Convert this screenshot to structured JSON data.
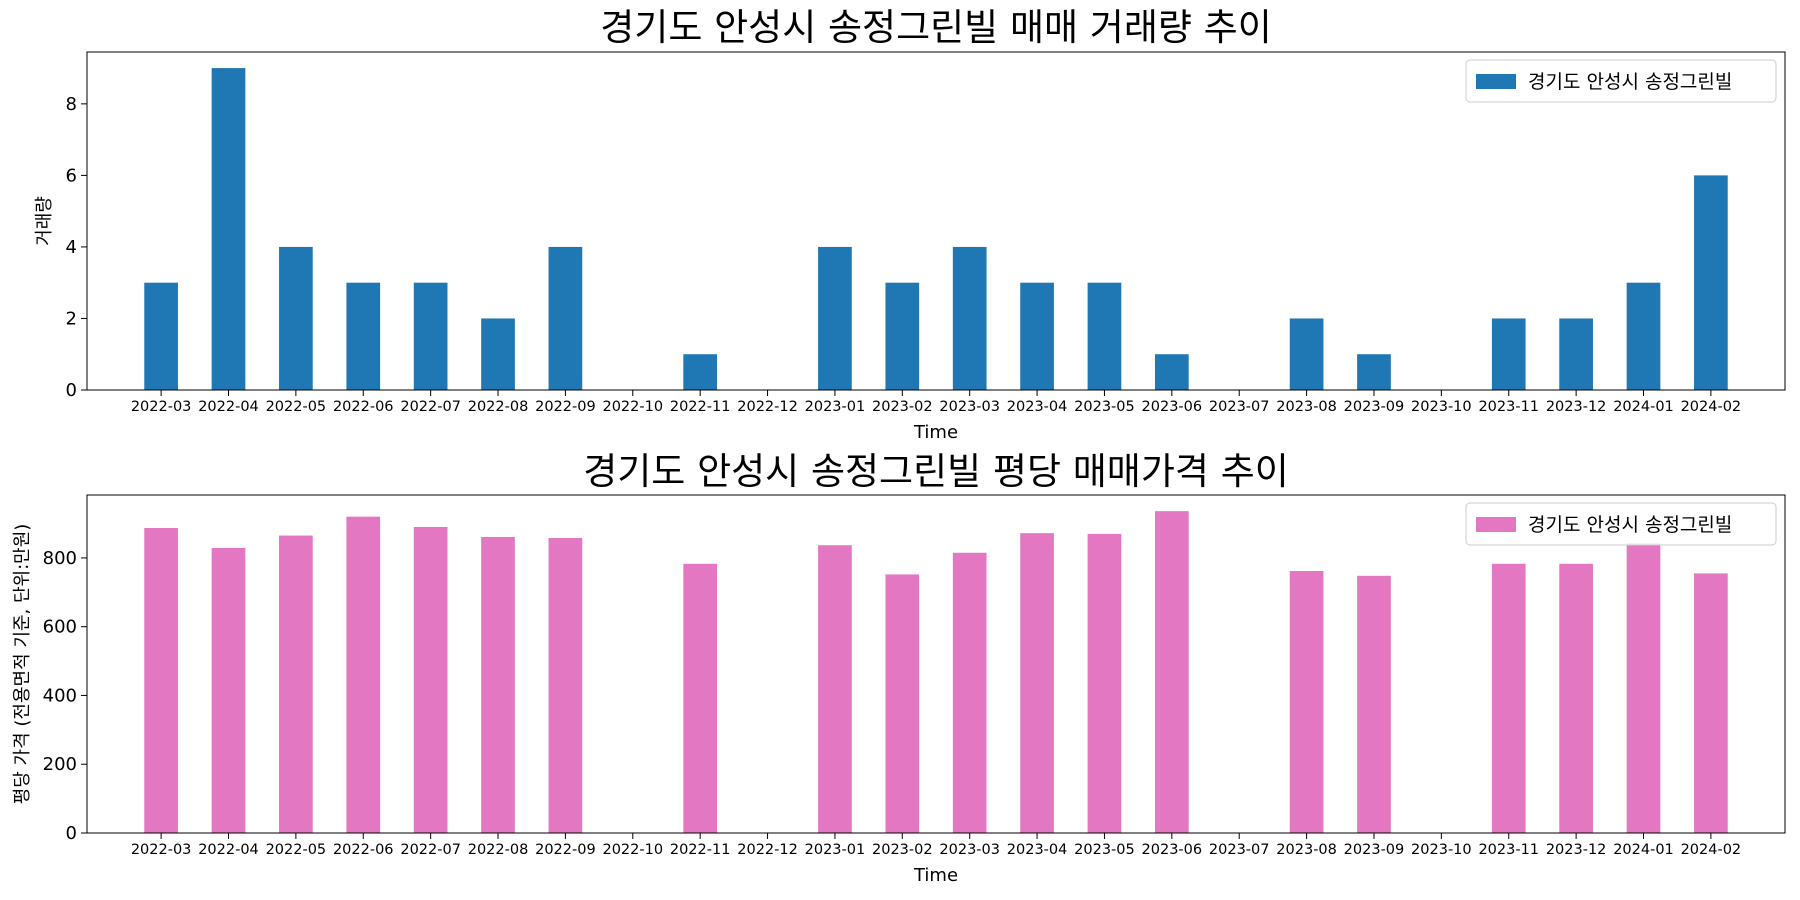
{
  "chart_data": [
    {
      "type": "bar",
      "title": "경기도 안성시 송정그린빌 매매 거래량 추이",
      "xlabel": "Time",
      "ylabel": "거래량",
      "legend": {
        "placement": "top-right",
        "entries": [
          "경기도 안성시 송정그린빌"
        ]
      },
      "color": "#1f77b4",
      "ylim": [
        0,
        9.45
      ],
      "yticks": [
        0,
        2,
        4,
        6,
        8
      ],
      "categories": [
        "2022-03",
        "2022-04",
        "2022-05",
        "2022-06",
        "2022-07",
        "2022-08",
        "2022-09",
        "2022-10",
        "2022-11",
        "2022-12",
        "2023-01",
        "2023-02",
        "2023-03",
        "2023-04",
        "2023-05",
        "2023-06",
        "2023-07",
        "2023-08",
        "2023-09",
        "2023-10",
        "2023-11",
        "2023-12",
        "2024-01",
        "2024-02"
      ],
      "series": [
        {
          "name": "경기도 안성시 송정그린빌",
          "values": [
            3,
            9,
            4,
            3,
            3,
            2,
            4,
            0,
            1,
            0,
            4,
            3,
            4,
            3,
            3,
            1,
            0,
            2,
            1,
            0,
            2,
            2,
            3,
            6
          ]
        }
      ]
    },
    {
      "type": "bar",
      "title": "경기도 안성시 송정그린빌 평당 매매가격 추이",
      "xlabel": "Time",
      "ylabel": "평당 가격 (전용면적 기준, 단위:만원)",
      "legend": {
        "placement": "top-right",
        "entries": [
          "경기도 안성시 송정그린빌"
        ]
      },
      "color": "#e377c2",
      "ylim": [
        0,
        983
      ],
      "yticks": [
        0,
        200,
        400,
        600,
        800
      ],
      "categories": [
        "2022-03",
        "2022-04",
        "2022-05",
        "2022-06",
        "2022-07",
        "2022-08",
        "2022-09",
        "2022-10",
        "2022-11",
        "2022-12",
        "2023-01",
        "2023-02",
        "2023-03",
        "2023-04",
        "2023-05",
        "2023-06",
        "2023-07",
        "2023-08",
        "2023-09",
        "2023-10",
        "2023-11",
        "2023-12",
        "2024-01",
        "2024-02"
      ],
      "series": [
        {
          "name": "경기도 안성시 송정그린빌",
          "values": [
            887,
            829,
            865,
            920,
            890,
            861,
            858,
            0,
            783,
            0,
            837,
            752,
            815,
            872,
            870,
            936,
            0,
            762,
            748,
            0,
            783,
            783,
            843,
            755
          ]
        }
      ]
    }
  ]
}
